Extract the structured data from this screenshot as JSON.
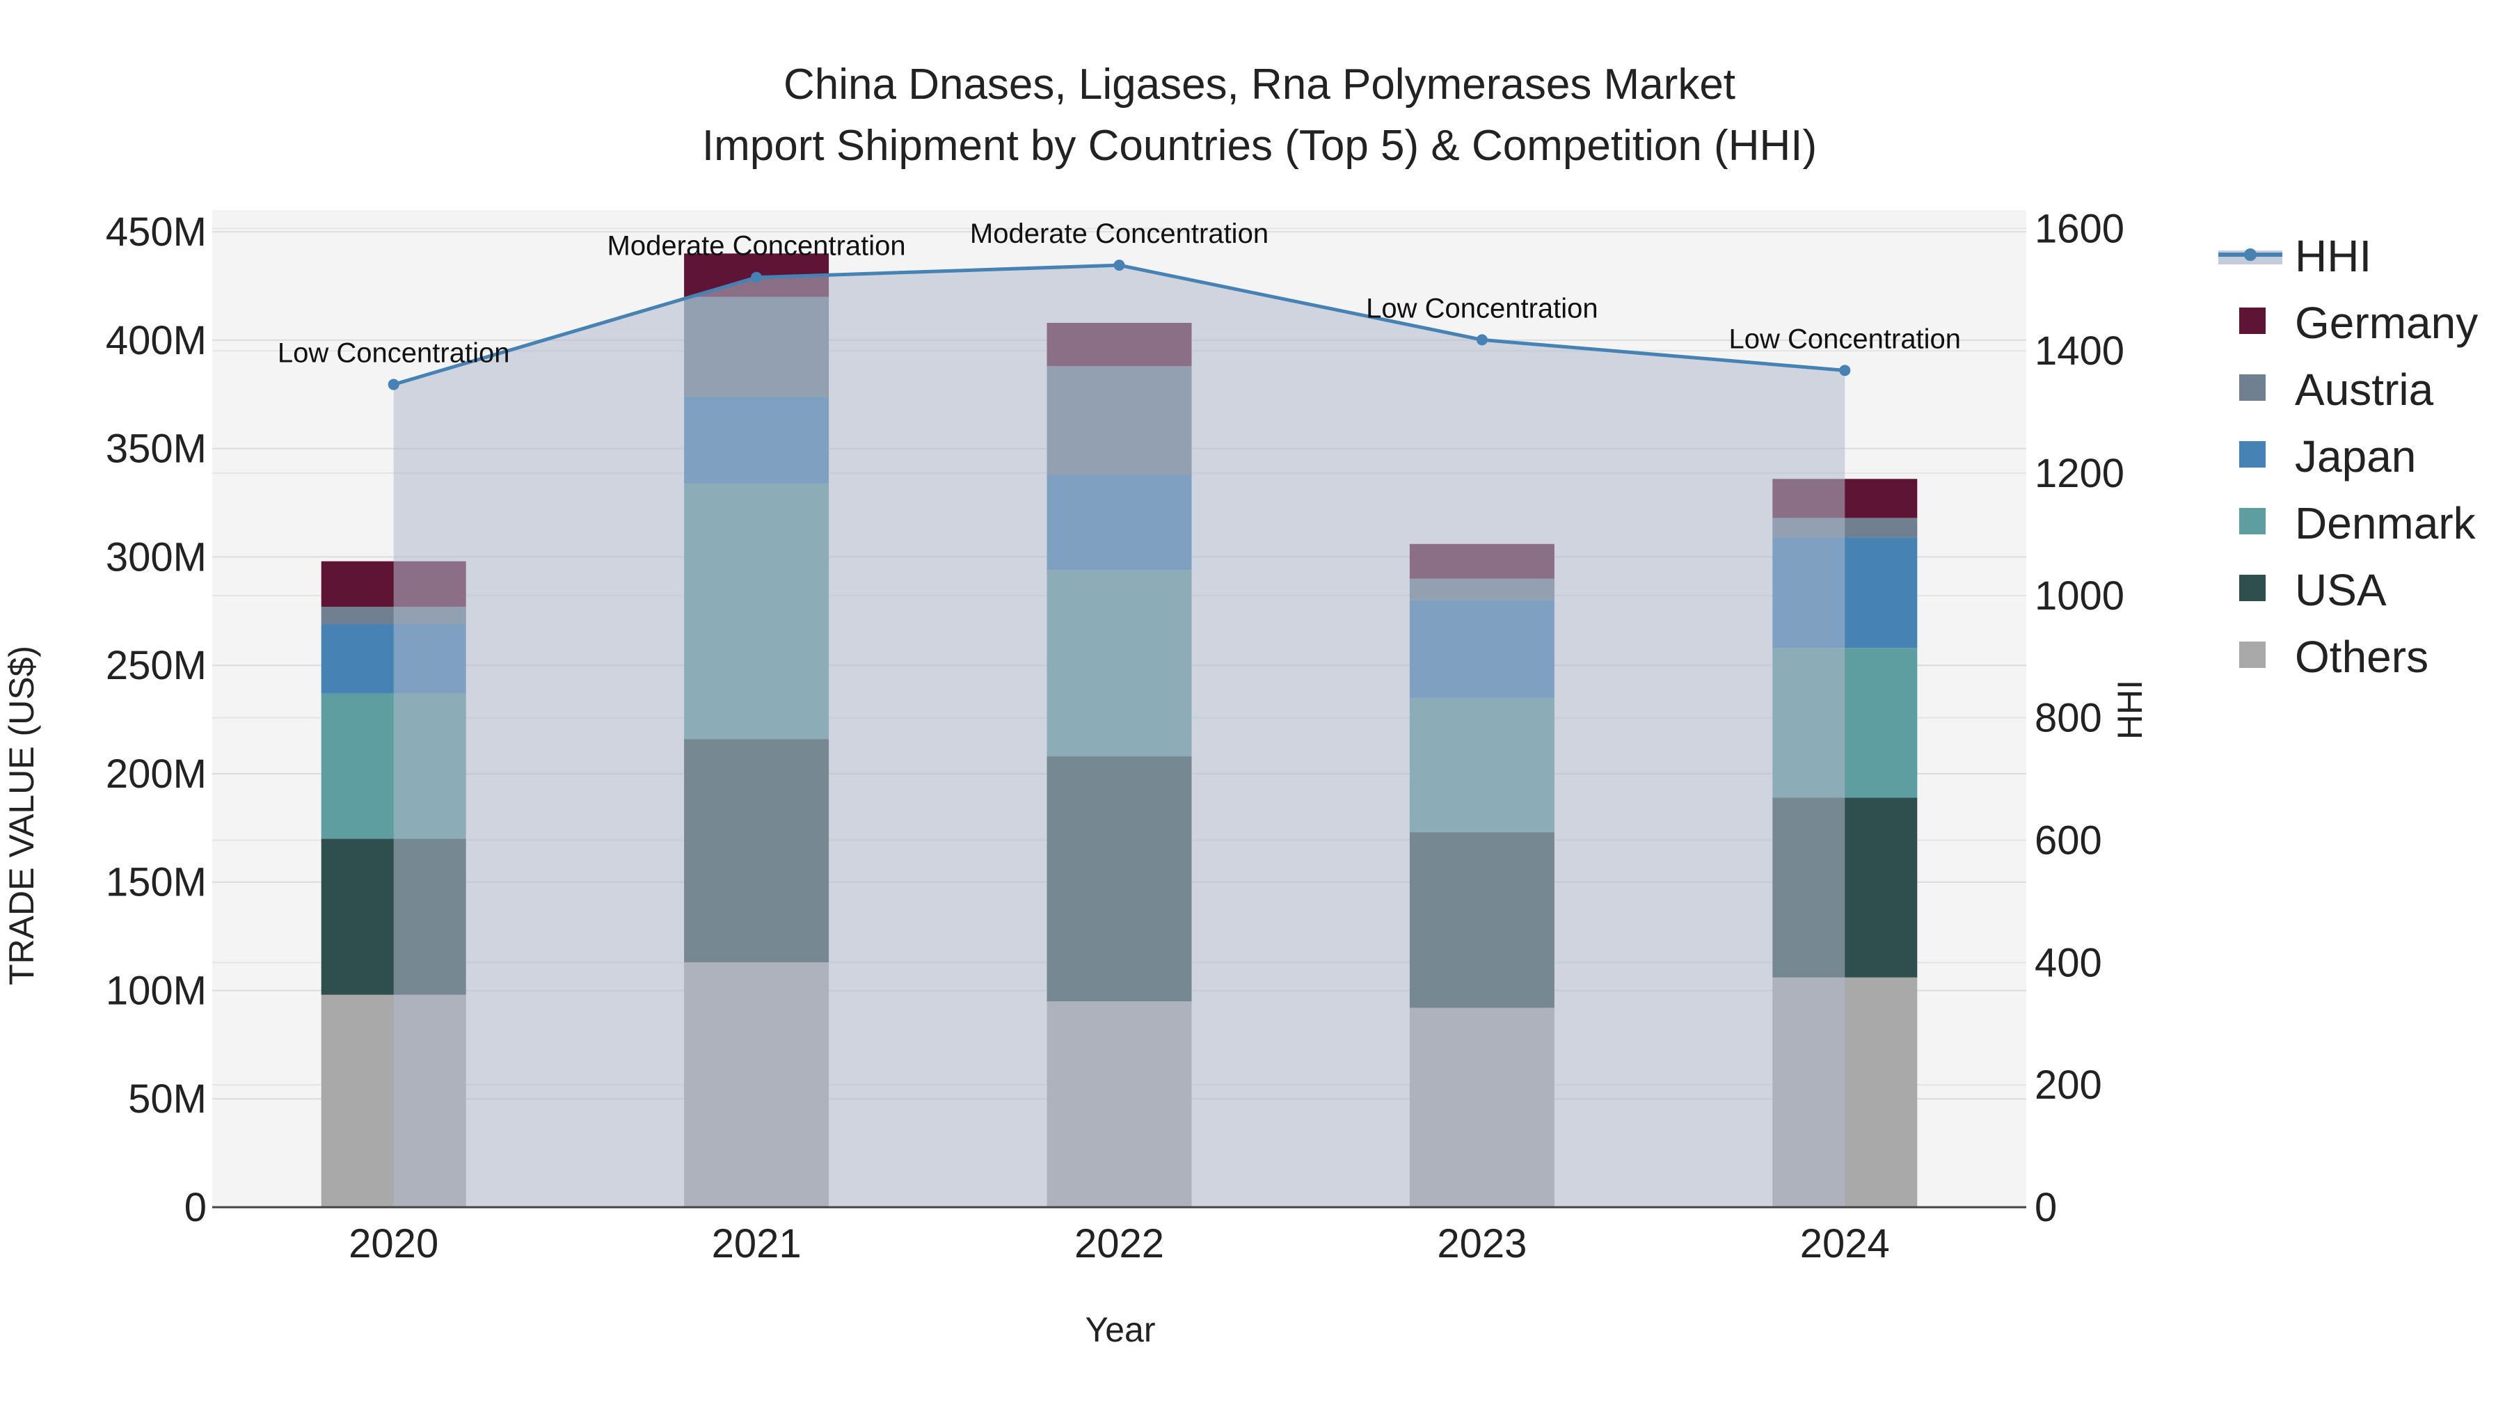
{
  "chart_data": {
    "type": "bar",
    "mode": "stacked",
    "title_line1": "China Dnases, Ligases, Rna Polymerases Market",
    "title_line2": "Import Shipment by Countries (Top 5) & Competition (HHI)",
    "xlabel": "Year",
    "ylabel": "TRADE VALUE (US$)",
    "y2label": "HHI",
    "categories": [
      "2020",
      "2021",
      "2022",
      "2023",
      "2024"
    ],
    "ylim": [
      0,
      460000000
    ],
    "y2lim": [
      0,
      1630
    ],
    "y_ticks": [
      {
        "value": 0,
        "label": "0"
      },
      {
        "value": 50000000,
        "label": "50M"
      },
      {
        "value": 100000000,
        "label": "100M"
      },
      {
        "value": 150000000,
        "label": "150M"
      },
      {
        "value": 200000000,
        "label": "200M"
      },
      {
        "value": 250000000,
        "label": "250M"
      },
      {
        "value": 300000000,
        "label": "300M"
      },
      {
        "value": 350000000,
        "label": "350M"
      },
      {
        "value": 400000000,
        "label": "400M"
      },
      {
        "value": 450000000,
        "label": "450M"
      }
    ],
    "y2_ticks": [
      {
        "value": 0,
        "label": "0"
      },
      {
        "value": 200,
        "label": "200"
      },
      {
        "value": 400,
        "label": "400"
      },
      {
        "value": 600,
        "label": "600"
      },
      {
        "value": 800,
        "label": "800"
      },
      {
        "value": 1000,
        "label": "1000"
      },
      {
        "value": 1200,
        "label": "1200"
      },
      {
        "value": 1400,
        "label": "1400"
      },
      {
        "value": 1600,
        "label": "1600"
      }
    ],
    "series": [
      {
        "name": "Others",
        "color": "#a9a9a9",
        "values": [
          98000000,
          113000000,
          95000000,
          92000000,
          106000000
        ]
      },
      {
        "name": "USA",
        "color": "#2f4f4f",
        "values": [
          72000000,
          103000000,
          113000000,
          81000000,
          83000000
        ]
      },
      {
        "name": "Denmark",
        "color": "#5f9ea0",
        "values": [
          67000000,
          118000000,
          86000000,
          62000000,
          69000000
        ]
      },
      {
        "name": "Japan",
        "color": "#4682b4",
        "values": [
          32000000,
          40000000,
          44000000,
          45000000,
          51000000
        ]
      },
      {
        "name": "Austria",
        "color": "#708090",
        "values": [
          8000000,
          46000000,
          50000000,
          10000000,
          9000000
        ]
      },
      {
        "name": "Germany",
        "color": "#5e1434",
        "values": [
          21000000,
          20000000,
          20000000,
          16000000,
          18000000
        ]
      }
    ],
    "hhi": {
      "name": "HHI",
      "color": "#4682b4",
      "values": [
        1345,
        1520,
        1540,
        1418,
        1368
      ],
      "annotations": [
        "Low Concentration",
        "Moderate Concentration",
        "Moderate Concentration",
        "Low Concentration",
        "Low Concentration"
      ]
    },
    "legend": {
      "position": "top-right",
      "items": [
        "HHI",
        "Germany",
        "Austria",
        "Japan",
        "Denmark",
        "USA",
        "Others"
      ]
    }
  }
}
